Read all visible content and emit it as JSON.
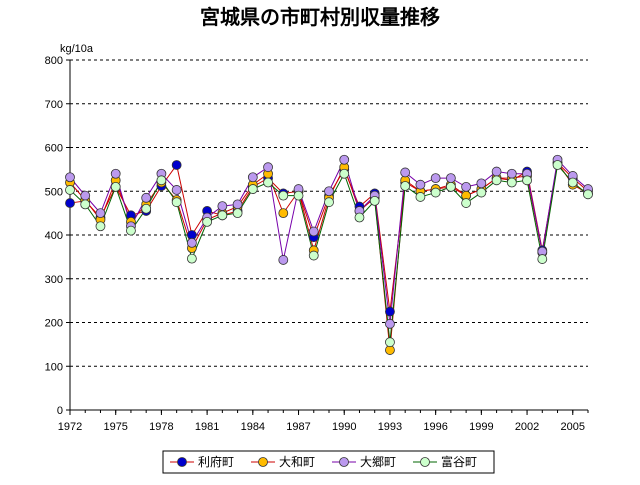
{
  "chart_data": {
    "type": "line",
    "title": "宮城県の市町村別収量推移",
    "unit_label": "kg/10a",
    "xlabel": "",
    "ylabel": "kg/10a",
    "ylim": [
      0,
      800
    ],
    "xlim": [
      1972,
      2006
    ],
    "y_ticks": [
      "0",
      "100",
      "200",
      "300",
      "400",
      "500",
      "600",
      "700",
      "800"
    ],
    "x_ticks": [
      "1972",
      "1975",
      "1978",
      "1981",
      "1984",
      "1987",
      "1990",
      "1993",
      "1996",
      "1999",
      "2002",
      "2005"
    ],
    "grid": "horizontal dashed",
    "legend_position": "bottom",
    "x": [
      1972,
      1973,
      1974,
      1975,
      1976,
      1977,
      1978,
      1979,
      1980,
      1981,
      1982,
      1983,
      1984,
      1985,
      1986,
      1987,
      1988,
      1989,
      1990,
      1991,
      1992,
      1993,
      1994,
      1995,
      1996,
      1997,
      1998,
      1999,
      2000,
      2001,
      2002,
      2003,
      2004,
      2005,
      2006
    ],
    "series": [
      {
        "name": "利府町",
        "color": "#0000cc",
        "line_color": "#cc0000",
        "values": [
          473,
          478,
          440,
          510,
          445,
          455,
          512,
          560,
          400,
          455,
          445,
          455,
          510,
          530,
          495,
          500,
          395,
          490,
          550,
          465,
          495,
          225,
          520,
          500,
          505,
          510,
          490,
          505,
          530,
          525,
          545,
          365,
          565,
          530,
          500
        ]
      },
      {
        "name": "大和町",
        "color": "#ffbb00",
        "line_color": "#cc0000",
        "values": [
          520,
          480,
          435,
          525,
          430,
          470,
          520,
          480,
          370,
          435,
          450,
          465,
          515,
          540,
          450,
          500,
          365,
          485,
          555,
          455,
          485,
          137,
          525,
          500,
          505,
          515,
          490,
          505,
          530,
          530,
          535,
          360,
          565,
          515,
          495
        ]
      },
      {
        "name": "大郷町",
        "color": "#bb99ee",
        "line_color": "#7700aa",
        "values": [
          532,
          490,
          450,
          540,
          420,
          485,
          540,
          503,
          382,
          440,
          466,
          470,
          532,
          555,
          343,
          505,
          408,
          500,
          572,
          455,
          490,
          197,
          543,
          515,
          530,
          530,
          510,
          518,
          545,
          540,
          540,
          362,
          572,
          535,
          505
        ]
      },
      {
        "name": "富谷町",
        "color": "#ccffcc",
        "line_color": "#006600",
        "values": [
          503,
          470,
          420,
          510,
          410,
          460,
          525,
          475,
          346,
          430,
          445,
          450,
          505,
          520,
          490,
          490,
          353,
          475,
          540,
          440,
          478,
          155,
          512,
          487,
          497,
          510,
          473,
          497,
          525,
          520,
          525,
          345,
          560,
          520,
          493
        ]
      }
    ]
  }
}
